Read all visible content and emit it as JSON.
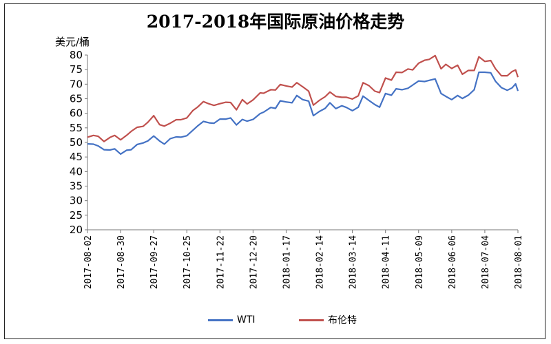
{
  "chart_data": {
    "type": "line",
    "title": "2017-2018年国际原油价格走势",
    "y_unit_label": "美元/桶",
    "ylim": [
      20,
      80
    ],
    "yticks": [
      20,
      25,
      30,
      35,
      40,
      45,
      50,
      55,
      60,
      65,
      70,
      75,
      80
    ],
    "x_range": [
      "2017-08-02",
      "2018-08-01"
    ],
    "x_tick_labels": [
      "2017-08-02",
      "2017-08-30",
      "2017-09-27",
      "2017-10-25",
      "2017-11-22",
      "2017-12-20",
      "2018-01-17",
      "2018-02-14",
      "2018-03-14",
      "2018-04-11",
      "2018-05-09",
      "2018-06-06",
      "2018-07-04",
      "2018-08-01"
    ],
    "legend_position": "bottom",
    "grid": false,
    "series": [
      {
        "name": "WTI",
        "color": "#4472C4",
        "points": [
          [
            "2017-08-02",
            49.5
          ],
          [
            "2017-08-07",
            49.4
          ],
          [
            "2017-08-11",
            48.8
          ],
          [
            "2017-08-16",
            47.5
          ],
          [
            "2017-08-21",
            47.4
          ],
          [
            "2017-08-25",
            47.8
          ],
          [
            "2017-08-30",
            46.0
          ],
          [
            "2017-09-04",
            47.3
          ],
          [
            "2017-09-08",
            47.5
          ],
          [
            "2017-09-13",
            49.3
          ],
          [
            "2017-09-18",
            49.8
          ],
          [
            "2017-09-22",
            50.5
          ],
          [
            "2017-09-27",
            52.2
          ],
          [
            "2017-10-02",
            50.5
          ],
          [
            "2017-10-06",
            49.4
          ],
          [
            "2017-10-11",
            51.3
          ],
          [
            "2017-10-16",
            51.9
          ],
          [
            "2017-10-20",
            51.8
          ],
          [
            "2017-10-25",
            52.3
          ],
          [
            "2017-10-30",
            54.1
          ],
          [
            "2017-11-03",
            55.6
          ],
          [
            "2017-11-08",
            57.2
          ],
          [
            "2017-11-13",
            56.7
          ],
          [
            "2017-11-17",
            56.6
          ],
          [
            "2017-11-22",
            58.0
          ],
          [
            "2017-11-27",
            58.0
          ],
          [
            "2017-12-01",
            58.4
          ],
          [
            "2017-12-06",
            56.0
          ],
          [
            "2017-12-11",
            57.9
          ],
          [
            "2017-12-15",
            57.3
          ],
          [
            "2017-12-20",
            57.9
          ],
          [
            "2017-12-26",
            59.9
          ],
          [
            "2017-12-29",
            60.4
          ],
          [
            "2018-01-04",
            62.0
          ],
          [
            "2018-01-08",
            61.7
          ],
          [
            "2018-01-12",
            64.3
          ],
          [
            "2018-01-17",
            63.9
          ],
          [
            "2018-01-22",
            63.6
          ],
          [
            "2018-01-26",
            66.1
          ],
          [
            "2018-01-31",
            64.7
          ],
          [
            "2018-02-05",
            64.2
          ],
          [
            "2018-02-09",
            59.2
          ],
          [
            "2018-02-14",
            60.6
          ],
          [
            "2018-02-19",
            61.7
          ],
          [
            "2018-02-23",
            63.6
          ],
          [
            "2018-02-28",
            61.6
          ],
          [
            "2018-03-05",
            62.6
          ],
          [
            "2018-03-09",
            62.0
          ],
          [
            "2018-03-14",
            60.9
          ],
          [
            "2018-03-19",
            62.1
          ],
          [
            "2018-03-23",
            65.9
          ],
          [
            "2018-03-28",
            64.4
          ],
          [
            "2018-04-02",
            63.0
          ],
          [
            "2018-04-06",
            62.1
          ],
          [
            "2018-04-11",
            66.8
          ],
          [
            "2018-04-16",
            66.2
          ],
          [
            "2018-04-20",
            68.4
          ],
          [
            "2018-04-25",
            68.1
          ],
          [
            "2018-04-30",
            68.6
          ],
          [
            "2018-05-04",
            69.7
          ],
          [
            "2018-05-09",
            71.1
          ],
          [
            "2018-05-14",
            70.9
          ],
          [
            "2018-05-18",
            71.3
          ],
          [
            "2018-05-23",
            71.8
          ],
          [
            "2018-05-28",
            66.8
          ],
          [
            "2018-06-01",
            65.8
          ],
          [
            "2018-06-06",
            64.7
          ],
          [
            "2018-06-11",
            66.1
          ],
          [
            "2018-06-15",
            65.1
          ],
          [
            "2018-06-20",
            66.2
          ],
          [
            "2018-06-25",
            68.1
          ],
          [
            "2018-06-29",
            74.1
          ],
          [
            "2018-07-04",
            74.1
          ],
          [
            "2018-07-09",
            73.9
          ],
          [
            "2018-07-13",
            71.0
          ],
          [
            "2018-07-18",
            68.8
          ],
          [
            "2018-07-23",
            67.9
          ],
          [
            "2018-07-27",
            68.7
          ],
          [
            "2018-07-30",
            70.1
          ],
          [
            "2018-08-01",
            67.7
          ]
        ]
      },
      {
        "name": "布伦特",
        "color": "#C0504D",
        "points": [
          [
            "2017-08-02",
            51.8
          ],
          [
            "2017-08-07",
            52.4
          ],
          [
            "2017-08-11",
            52.1
          ],
          [
            "2017-08-16",
            50.3
          ],
          [
            "2017-08-21",
            51.7
          ],
          [
            "2017-08-25",
            52.4
          ],
          [
            "2017-08-30",
            50.9
          ],
          [
            "2017-09-04",
            52.4
          ],
          [
            "2017-09-08",
            53.8
          ],
          [
            "2017-09-13",
            55.2
          ],
          [
            "2017-09-18",
            55.5
          ],
          [
            "2017-09-22",
            56.9
          ],
          [
            "2017-09-27",
            59.2
          ],
          [
            "2017-10-02",
            56.1
          ],
          [
            "2017-10-06",
            55.6
          ],
          [
            "2017-10-11",
            56.6
          ],
          [
            "2017-10-16",
            57.8
          ],
          [
            "2017-10-20",
            57.8
          ],
          [
            "2017-10-25",
            58.4
          ],
          [
            "2017-10-30",
            60.9
          ],
          [
            "2017-11-03",
            62.1
          ],
          [
            "2017-11-08",
            64.0
          ],
          [
            "2017-11-13",
            63.2
          ],
          [
            "2017-11-17",
            62.7
          ],
          [
            "2017-11-22",
            63.3
          ],
          [
            "2017-11-27",
            63.8
          ],
          [
            "2017-12-01",
            63.7
          ],
          [
            "2017-12-06",
            61.2
          ],
          [
            "2017-12-11",
            64.7
          ],
          [
            "2017-12-15",
            63.2
          ],
          [
            "2017-12-20",
            64.6
          ],
          [
            "2017-12-26",
            67.0
          ],
          [
            "2017-12-29",
            66.9
          ],
          [
            "2018-01-04",
            68.1
          ],
          [
            "2018-01-08",
            68.0
          ],
          [
            "2018-01-12",
            69.9
          ],
          [
            "2018-01-17",
            69.4
          ],
          [
            "2018-01-22",
            69.0
          ],
          [
            "2018-01-26",
            70.5
          ],
          [
            "2018-01-31",
            69.1
          ],
          [
            "2018-02-05",
            67.6
          ],
          [
            "2018-02-09",
            62.8
          ],
          [
            "2018-02-14",
            64.4
          ],
          [
            "2018-02-19",
            65.7
          ],
          [
            "2018-02-23",
            67.3
          ],
          [
            "2018-02-28",
            65.8
          ],
          [
            "2018-03-05",
            65.5
          ],
          [
            "2018-03-09",
            65.5
          ],
          [
            "2018-03-14",
            64.9
          ],
          [
            "2018-03-19",
            66.0
          ],
          [
            "2018-03-23",
            70.5
          ],
          [
            "2018-03-28",
            69.5
          ],
          [
            "2018-04-02",
            67.6
          ],
          [
            "2018-04-06",
            67.1
          ],
          [
            "2018-04-11",
            72.1
          ],
          [
            "2018-04-16",
            71.4
          ],
          [
            "2018-04-20",
            74.1
          ],
          [
            "2018-04-25",
            74.0
          ],
          [
            "2018-04-30",
            75.2
          ],
          [
            "2018-05-04",
            74.9
          ],
          [
            "2018-05-09",
            77.2
          ],
          [
            "2018-05-14",
            78.2
          ],
          [
            "2018-05-18",
            78.5
          ],
          [
            "2018-05-23",
            79.8
          ],
          [
            "2018-05-28",
            75.3
          ],
          [
            "2018-06-01",
            76.8
          ],
          [
            "2018-06-06",
            75.4
          ],
          [
            "2018-06-11",
            76.5
          ],
          [
            "2018-06-15",
            73.4
          ],
          [
            "2018-06-20",
            74.7
          ],
          [
            "2018-06-25",
            74.7
          ],
          [
            "2018-06-29",
            79.4
          ],
          [
            "2018-07-04",
            77.8
          ],
          [
            "2018-07-09",
            78.1
          ],
          [
            "2018-07-13",
            75.3
          ],
          [
            "2018-07-18",
            72.9
          ],
          [
            "2018-07-23",
            72.9
          ],
          [
            "2018-07-27",
            74.3
          ],
          [
            "2018-07-30",
            74.9
          ],
          [
            "2018-08-01",
            72.4
          ]
        ]
      }
    ]
  }
}
